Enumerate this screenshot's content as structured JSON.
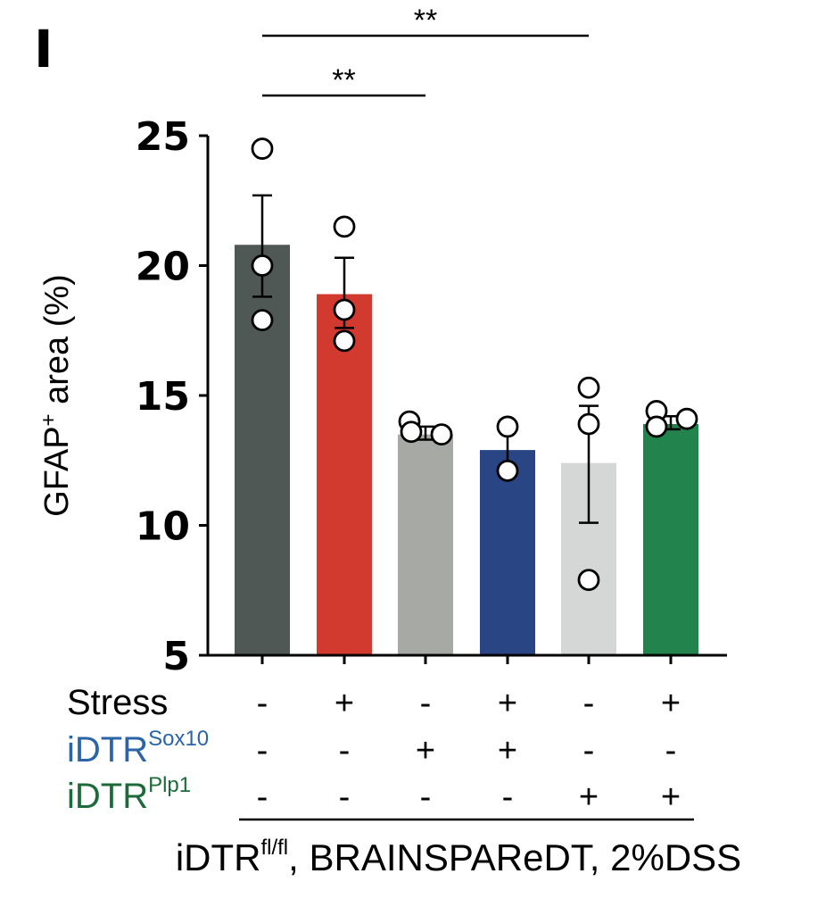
{
  "panel_label": "I",
  "chart_data": {
    "type": "bar",
    "ylabel_main": "GFAP",
    "ylabel_sup": "+",
    "ylabel_rest": " area (%)",
    "ylim": [
      5,
      25
    ],
    "yticks": [
      "5",
      "10",
      "15",
      "20",
      "25"
    ],
    "bars": [
      {
        "value": 20.8,
        "err_low": 18.8,
        "err_high": 22.7,
        "color": "#505855",
        "points": [
          24.5,
          20.0,
          17.9
        ]
      },
      {
        "value": 18.9,
        "err_low": 17.6,
        "err_high": 20.3,
        "color": "#d23a2f",
        "points": [
          21.5,
          18.3,
          17.1
        ]
      },
      {
        "value": 13.5,
        "err_low": 13.3,
        "err_high": 13.8,
        "color": "#a7a9a5",
        "points": [
          14.0,
          13.6,
          13.5
        ]
      },
      {
        "value": 12.9,
        "err_low": 12.1,
        "err_high": 13.8,
        "color": "#2a4584",
        "points": [
          13.8,
          12.1
        ]
      },
      {
        "value": 12.4,
        "err_low": 10.1,
        "err_high": 14.6,
        "color": "#d5d7d6",
        "points": [
          15.3,
          13.9,
          7.9
        ]
      },
      {
        "value": 13.9,
        "err_low": 13.7,
        "err_high": 14.2,
        "color": "#22844c",
        "points": [
          14.4,
          13.8,
          14.1
        ]
      }
    ],
    "significance": [
      {
        "from": 0,
        "to": 2,
        "label": "**"
      },
      {
        "from": 0,
        "to": 4,
        "label": "**"
      }
    ],
    "design_rows": [
      {
        "label": "Stress",
        "sup": "",
        "color": "#000000",
        "signs": [
          "-",
          "+",
          "-",
          "+",
          "-",
          "+"
        ]
      },
      {
        "label": "iDTR",
        "sup": "Sox10",
        "color": "#2b64a7",
        "signs": [
          "-",
          "-",
          "+",
          "+",
          "-",
          "-"
        ]
      },
      {
        "label": "iDTR",
        "sup": "Plp1",
        "color": "#1d6a3a",
        "signs": [
          "-",
          "-",
          "-",
          "-",
          "+",
          "+"
        ]
      }
    ],
    "footnote_main": "iDTR",
    "footnote_sup": "fl/fl",
    "footnote_rest": ", BRAINSPAReDT, 2%DSS"
  }
}
